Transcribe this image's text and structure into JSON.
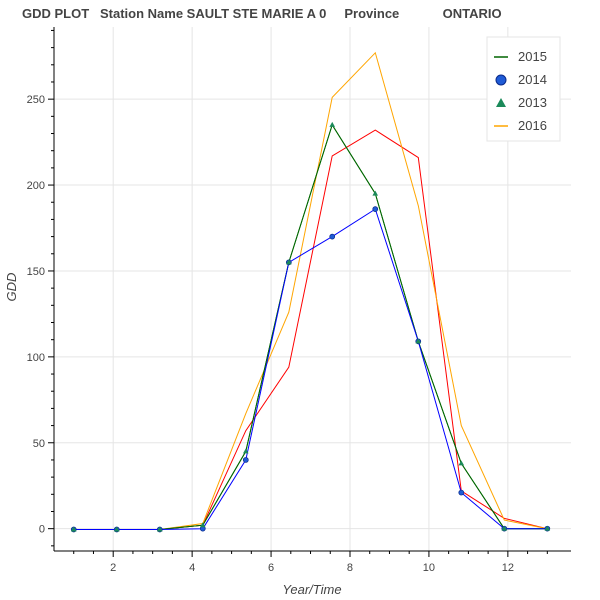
{
  "chart_data": {
    "type": "line",
    "title": "GDD PLOT   Station Name SAULT STE MARIE A 0     Province            ONTARIO",
    "xlabel": "Year/Time",
    "ylabel": "GDD",
    "xlim": [
      0.5,
      13.6
    ],
    "ylim": [
      -13,
      292
    ],
    "x_ticks": [
      2,
      4,
      6,
      8,
      10,
      12
    ],
    "y_ticks": [
      0,
      50,
      100,
      150,
      200,
      250
    ],
    "grid": true,
    "legend_position": "top-right",
    "series": [
      {
        "name": "2015",
        "color": "#006400",
        "marker": "none",
        "x": [
          1,
          2.09,
          3.18,
          4.27,
          5.36,
          6.45,
          7.55,
          8.64,
          9.73,
          10.82,
          11.91,
          13
        ],
        "y": [
          -0.5,
          -0.5,
          -0.5,
          2,
          45,
          155,
          235,
          195,
          109,
          38,
          0,
          0
        ]
      },
      {
        "name": "2014",
        "color": "#0000ff",
        "marker": "circle",
        "x": [
          1,
          2.09,
          3.18,
          4.27,
          5.36,
          6.45,
          7.55,
          8.64,
          9.73,
          10.82,
          11.91,
          13
        ],
        "y": [
          -0.5,
          -0.5,
          -0.5,
          0,
          40,
          155,
          170,
          186,
          109,
          21,
          0,
          0
        ]
      },
      {
        "name": "2013",
        "color": "#008000",
        "marker": "triangle",
        "x": [
          1,
          2.09,
          3.18,
          4.27,
          5.36,
          6.45,
          7.55,
          8.64,
          9.73,
          10.82,
          11.91,
          13
        ],
        "y": [
          -0.5,
          -0.5,
          -0.5,
          2,
          45,
          155,
          235,
          195,
          109,
          38,
          0,
          0
        ]
      },
      {
        "name": "2016",
        "color": "#ffa500",
        "marker": "none",
        "x": [
          1,
          2.09,
          3.18,
          4.27,
          5.36,
          6.45,
          7.55,
          8.64,
          9.73,
          10.82,
          11.91,
          13
        ],
        "y": [
          -0.5,
          -0.5,
          -0.5,
          3,
          67,
          126,
          251,
          277,
          188,
          60,
          5,
          0
        ]
      },
      {
        "name": "",
        "color": "#ff0000",
        "marker": "none",
        "x": [
          1,
          2.09,
          3.18,
          4.27,
          5.36,
          6.45,
          7.55,
          8.64,
          9.73,
          10.82,
          11.91,
          13
        ],
        "y": [
          -0.5,
          -0.5,
          -0.5,
          2,
          57,
          94,
          217,
          232,
          216,
          22,
          6,
          0
        ]
      }
    ]
  }
}
